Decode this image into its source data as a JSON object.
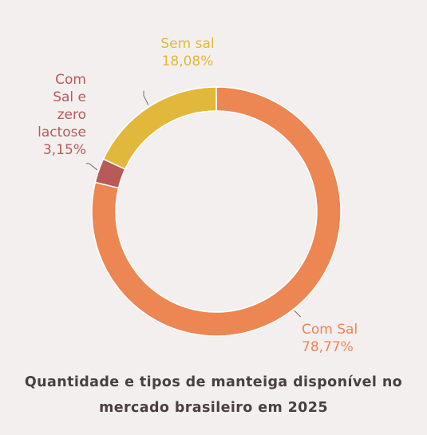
{
  "chart_data": {
    "type": "pie",
    "style": "donut",
    "title": "Quantidade e tipos de manteiga disponível no mercado brasileiro em 2025",
    "slices": [
      {
        "name": "Com Sal",
        "value": 78.77,
        "value_label": "78,77%",
        "color": "#ec8652"
      },
      {
        "name": "Com Sal e zero lactose",
        "value": 3.15,
        "value_label": "3,15%",
        "color": "#b75a58"
      },
      {
        "name": "Sem sal",
        "value": 18.08,
        "value_label": "18,08%",
        "color": "#e1b83b"
      }
    ]
  },
  "labels": {
    "com_sal": {
      "line1": "Com Sal",
      "line2": "78,77%",
      "color": "#ec8652"
    },
    "zero_lactose": {
      "line1": "Com",
      "line2": "Sal e",
      "line3": "zero",
      "line4": "lactose",
      "line5": "3,15%",
      "color": "#b75a58"
    },
    "sem_sal": {
      "line1": "Sem sal",
      "line2": "18,08%",
      "color": "#e1b83b"
    }
  },
  "caption": {
    "line1": "Quantidade e tipos de manteiga disponível no",
    "line2": "mercado brasileiro em 2025"
  }
}
